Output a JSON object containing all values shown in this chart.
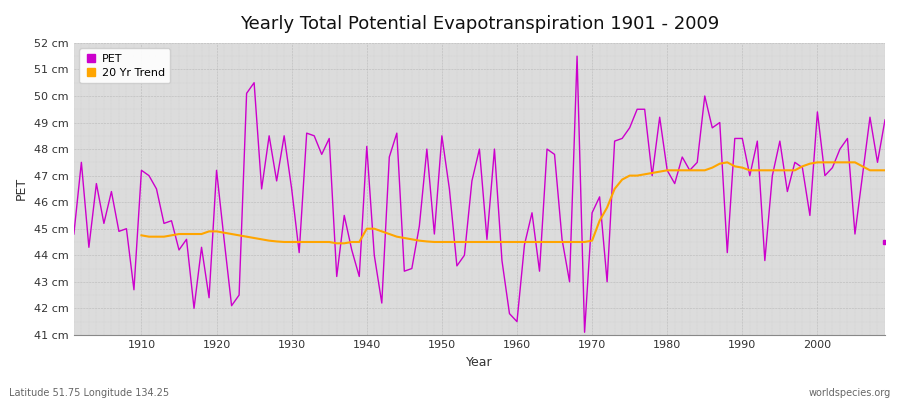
{
  "title": "Yearly Total Potential Evapotranspiration 1901 - 2009",
  "ylabel": "PET",
  "xlabel": "Year",
  "subtitle_left": "Latitude 51.75 Longitude 134.25",
  "subtitle_right": "worldspecies.org",
  "pet_color": "#CC00CC",
  "trend_color": "#FFA500",
  "ylim": [
    41,
    52
  ],
  "yticks": [
    41,
    42,
    43,
    44,
    45,
    46,
    47,
    48,
    49,
    50,
    51,
    52
  ],
  "ytick_labels": [
    "41 cm",
    "42 cm",
    "43 cm",
    "44 cm",
    "45 cm",
    "46 cm",
    "47 cm",
    "48 cm",
    "49 cm",
    "50 cm",
    "51 cm",
    "52 cm"
  ],
  "bg_color": "#DCDCDC",
  "fig_color": "#FFFFFF",
  "years": [
    1901,
    1902,
    1903,
    1904,
    1905,
    1906,
    1907,
    1908,
    1909,
    1910,
    1911,
    1912,
    1913,
    1914,
    1915,
    1916,
    1917,
    1918,
    1919,
    1920,
    1921,
    1922,
    1923,
    1924,
    1925,
    1926,
    1927,
    1928,
    1929,
    1930,
    1931,
    1932,
    1933,
    1934,
    1935,
    1936,
    1937,
    1938,
    1939,
    1940,
    1941,
    1942,
    1943,
    1944,
    1945,
    1946,
    1947,
    1948,
    1949,
    1950,
    1951,
    1952,
    1953,
    1954,
    1955,
    1956,
    1957,
    1958,
    1959,
    1960,
    1961,
    1962,
    1963,
    1964,
    1965,
    1966,
    1967,
    1968,
    1969,
    1970,
    1971,
    1972,
    1973,
    1974,
    1975,
    1976,
    1977,
    1978,
    1979,
    1980,
    1981,
    1982,
    1983,
    1984,
    1985,
    1986,
    1987,
    1988,
    1989,
    1990,
    1991,
    1992,
    1993,
    1994,
    1995,
    1996,
    1997,
    1998,
    1999,
    2000,
    2001,
    2002,
    2003,
    2004,
    2005,
    2006,
    2007,
    2008,
    2009
  ],
  "pet_values": [
    44.8,
    47.5,
    44.3,
    46.7,
    45.2,
    46.4,
    44.9,
    45.0,
    42.7,
    47.2,
    47.0,
    46.5,
    45.2,
    45.3,
    44.2,
    44.6,
    42.0,
    44.3,
    42.4,
    47.2,
    44.6,
    42.1,
    42.5,
    50.1,
    50.5,
    46.5,
    48.5,
    46.8,
    48.5,
    46.5,
    44.1,
    48.6,
    48.5,
    47.8,
    48.4,
    43.2,
    45.5,
    44.2,
    43.2,
    48.1,
    44.0,
    42.2,
    47.7,
    48.6,
    43.4,
    43.5,
    45.1,
    48.0,
    44.8,
    48.5,
    46.5,
    43.6,
    44.0,
    46.8,
    48.0,
    44.6,
    48.0,
    43.8,
    41.8,
    41.5,
    44.4,
    45.6,
    43.4,
    48.0,
    47.8,
    44.6,
    43.0,
    51.5,
    41.1,
    45.6,
    46.2,
    43.0,
    48.3,
    48.4,
    48.8,
    49.5,
    49.5,
    47.0,
    49.2,
    47.2,
    46.7,
    47.7,
    47.2,
    47.5,
    50.0,
    48.8,
    49.0,
    44.1,
    48.4,
    48.4,
    47.0,
    48.3,
    43.8,
    47.0,
    48.3,
    46.4,
    47.5,
    47.3,
    45.5,
    49.4,
    47.0,
    47.3,
    48.0,
    48.4,
    44.8,
    47.0,
    49.2,
    47.5,
    49.1
  ],
  "trend_years": [
    1910,
    1911,
    1912,
    1913,
    1914,
    1915,
    1916,
    1917,
    1918,
    1919,
    1920,
    1921,
    1922,
    1923,
    1924,
    1925,
    1926,
    1927,
    1928,
    1929,
    1930,
    1931,
    1932,
    1933,
    1934,
    1935,
    1936,
    1937,
    1938,
    1939,
    1940,
    1941,
    1942,
    1943,
    1944,
    1945,
    1946,
    1947,
    1948,
    1949,
    1950,
    1951,
    1952,
    1953,
    1954,
    1955,
    1956,
    1957,
    1958,
    1959,
    1960,
    1961,
    1962,
    1963,
    1964,
    1965,
    1966,
    1967,
    1968,
    1969,
    1970,
    1971,
    1972,
    1973,
    1974,
    1975,
    1976,
    1977,
    1978,
    1979,
    1980,
    1981,
    1982,
    1983,
    1984,
    1985,
    1986,
    1987,
    1988,
    1989,
    1990,
    1991,
    1992,
    1993,
    1994,
    1995,
    1996,
    1997,
    1998,
    1999,
    2000,
    2001,
    2002,
    2003,
    2004,
    2005,
    2006,
    2007,
    2008,
    2009
  ],
  "trend_values": [
    44.75,
    44.7,
    44.7,
    44.7,
    44.75,
    44.8,
    44.8,
    44.8,
    44.8,
    44.9,
    44.9,
    44.85,
    44.8,
    44.75,
    44.7,
    44.65,
    44.6,
    44.55,
    44.52,
    44.5,
    44.5,
    44.5,
    44.5,
    44.5,
    44.5,
    44.5,
    44.45,
    44.45,
    44.5,
    44.5,
    45.0,
    45.0,
    44.9,
    44.8,
    44.7,
    44.65,
    44.6,
    44.55,
    44.52,
    44.5,
    44.5,
    44.5,
    44.5,
    44.5,
    44.5,
    44.5,
    44.5,
    44.5,
    44.5,
    44.5,
    44.5,
    44.5,
    44.5,
    44.5,
    44.5,
    44.5,
    44.5,
    44.5,
    44.5,
    44.5,
    44.55,
    45.3,
    45.8,
    46.5,
    46.85,
    47.0,
    47.0,
    47.05,
    47.1,
    47.15,
    47.2,
    47.2,
    47.2,
    47.2,
    47.2,
    47.2,
    47.3,
    47.45,
    47.5,
    47.35,
    47.3,
    47.2,
    47.2,
    47.2,
    47.2,
    47.2,
    47.2,
    47.2,
    47.35,
    47.45,
    47.5,
    47.5,
    47.5,
    47.5,
    47.5,
    47.5,
    47.35,
    47.2,
    47.2,
    47.2
  ],
  "xticks": [
    1910,
    1920,
    1930,
    1940,
    1950,
    1960,
    1970,
    1980,
    1990,
    2000
  ],
  "xlim": [
    1901,
    2009
  ],
  "title_fontsize": 13,
  "axis_label_fontsize": 9,
  "tick_fontsize": 8,
  "legend_fontsize": 8,
  "footer_fontsize": 7
}
